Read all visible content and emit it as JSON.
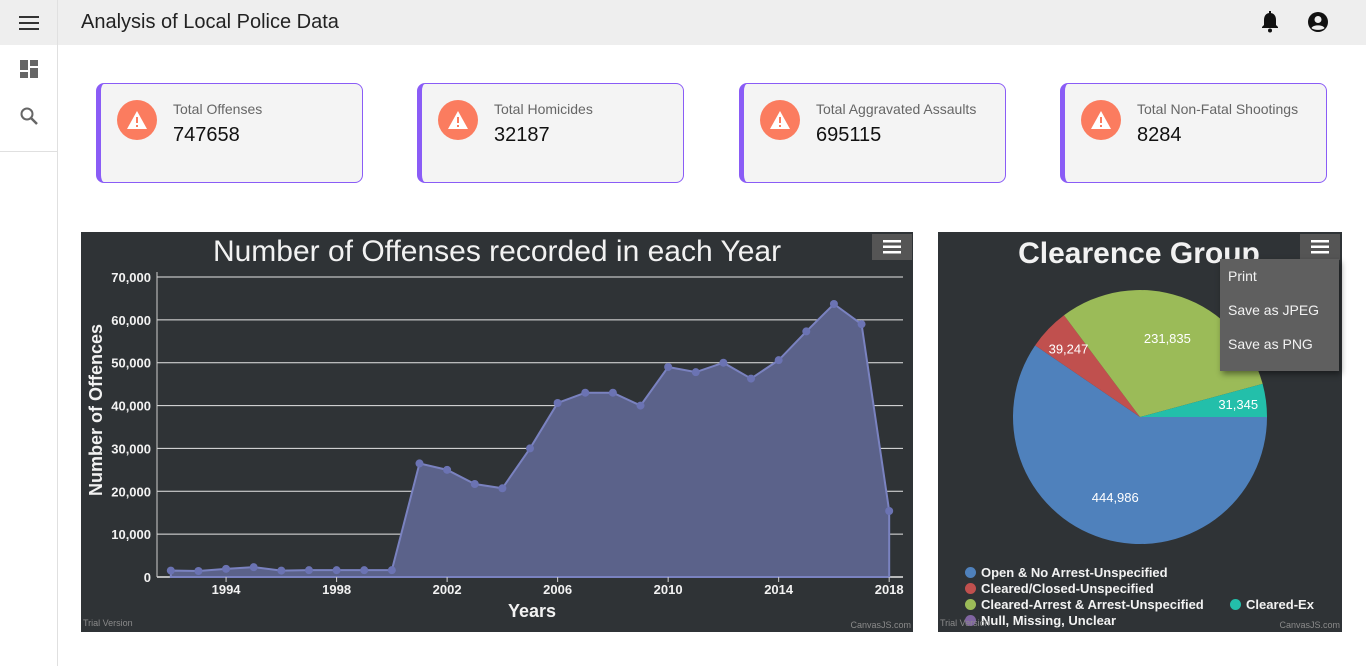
{
  "app": {
    "title": "Analysis of Local Police Data"
  },
  "icons": {
    "menu": "hamburger-icon",
    "dashboard": "dashboard-icon",
    "search": "search-icon",
    "notifications": "bell-icon",
    "account": "account-circle-icon",
    "warning": "warning-icon"
  },
  "cards": [
    {
      "label": "Total Offenses",
      "value": "747658"
    },
    {
      "label": "Total Homicides",
      "value": "32187"
    },
    {
      "label": "Total Aggravated Assaults",
      "value": "695115"
    },
    {
      "label": "Total Non-Fatal Shootings",
      "value": "8284"
    }
  ],
  "colors": {
    "card_accent": "#8a5cf6",
    "warning": "#fb7c5f",
    "chart_bg": "#2f3336",
    "area_fill": "#5b628a",
    "area_line": "#7a82c0"
  },
  "trial": {
    "left": "Trial Version",
    "right": "CanvasJS.com"
  },
  "menu": {
    "print": "Print",
    "jpeg": "Save as JPEG",
    "png": "Save as PNG"
  },
  "chart_data": [
    {
      "type": "area",
      "title": "Number of Offenses recorded in each Year",
      "xlabel": "Years",
      "ylabel": "Number of Offences",
      "ylim": [
        0,
        70000
      ],
      "yticks": [
        "0",
        "10,000",
        "20,000",
        "30,000",
        "40,000",
        "50,000",
        "60,000",
        "70,000"
      ],
      "xticks": [
        "1994",
        "1998",
        "2002",
        "2006",
        "2010",
        "2014",
        "2018"
      ],
      "x": [
        1992,
        1993,
        1994,
        1995,
        1996,
        1997,
        1998,
        1999,
        2000,
        2001,
        2002,
        2003,
        2004,
        2005,
        2006,
        2007,
        2008,
        2009,
        2010,
        2011,
        2012,
        2013,
        2014,
        2015,
        2016,
        2017,
        2018
      ],
      "values": [
        1500,
        1400,
        1900,
        2300,
        1500,
        1600,
        1600,
        1600,
        1600,
        26500,
        25000,
        21700,
        20700,
        30000,
        40600,
        43000,
        43000,
        40000,
        49000,
        47800,
        50000,
        46300,
        50600,
        57300,
        63700,
        59000,
        15400
      ],
      "grid": true
    },
    {
      "type": "pie",
      "title": "Clearence Group",
      "slices": [
        {
          "label": "Open & No Arrest-Unspecified",
          "value": 444986,
          "display": "444,986",
          "color": "#4f81bc"
        },
        {
          "label": "Cleared/Closed-Unspecified",
          "value": 39247,
          "display": "39,247",
          "color": "#c0504e"
        },
        {
          "label": "Cleared-Arrest & Arrest-Unspecified",
          "value": 231835,
          "display": "231,835",
          "color": "#9bbb58"
        },
        {
          "label": "Cleared-Ex",
          "value": 31345,
          "display": "31,345",
          "color": "#23bfaa"
        },
        {
          "label": "Null, Missing, Unclear",
          "value": 0,
          "display": "",
          "color": "#8064a1"
        }
      ],
      "legend_position": "bottom"
    }
  ]
}
